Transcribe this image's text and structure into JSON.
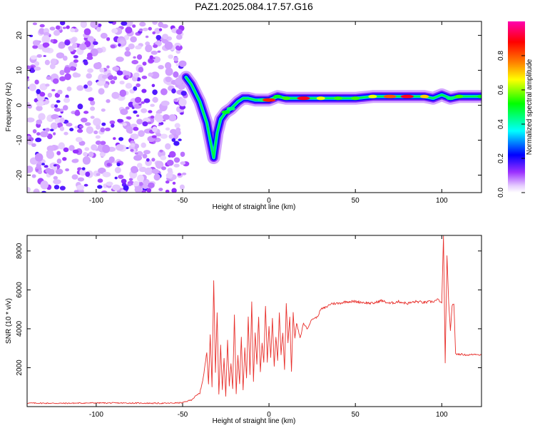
{
  "chart_data": [
    {
      "type": "heatmap",
      "title": "PAZ1.2025.084.17.57.G16",
      "xlabel": "Height of straight line (km)",
      "ylabel": "Frequency (Hz)",
      "xlim": [
        -140,
        123
      ],
      "ylim": [
        -25,
        24
      ],
      "xticks": [
        -100,
        -50,
        0,
        50,
        100
      ],
      "yticks": [
        -20,
        -10,
        0,
        10,
        20
      ],
      "colorbar": {
        "label": "Normalized spectral amplitude",
        "range": [
          0,
          1
        ],
        "ticks": [
          0.0,
          0.2,
          0.4,
          0.6,
          0.8
        ],
        "tick_labels": [
          "0.0",
          "0.2",
          "0.4",
          "0.6",
          "0.8"
        ],
        "colormap": [
          "#ffffff",
          "#d9b3f5",
          "#8a2be2",
          "#0000ff",
          "#00ffff",
          "#00ff00",
          "#ffff00",
          "#ff8000",
          "#ff0000",
          "#ff00b0"
        ]
      },
      "noise_region": {
        "x_from": -140,
        "x_to": -48,
        "freq_from": -25,
        "freq_to": 24,
        "amplitude": "0.0-0.3"
      },
      "signal_track": {
        "x": [
          -48,
          -45,
          -42,
          -40,
          -38,
          -36,
          -34,
          -32,
          -30,
          -28,
          -25,
          -22,
          -18,
          -15,
          -12,
          -8,
          -4,
          0,
          5,
          10,
          20,
          30,
          40,
          50,
          60,
          70,
          80,
          90,
          95,
          100,
          105,
          110,
          123
        ],
        "frequency": [
          8,
          6,
          3,
          1,
          -2,
          -5,
          -10,
          -15,
          -8,
          -4,
          -2,
          -1,
          1,
          2,
          2,
          1.5,
          1.5,
          1.5,
          2.5,
          2,
          2,
          2,
          2,
          2,
          2.5,
          2.5,
          2.5,
          2.5,
          2,
          3,
          2,
          2.5,
          2.5
        ],
        "amplitude": [
          0.2,
          0.25,
          0.3,
          0.3,
          0.3,
          0.25,
          0.3,
          0.25,
          0.3,
          0.3,
          0.5,
          0.45,
          0.35,
          0.35,
          0.4,
          0.4,
          0.45,
          0.85,
          0.5,
          0.55,
          0.9,
          0.65,
          0.55,
          0.55,
          0.65,
          0.8,
          0.9,
          0.7,
          0.35,
          0.4,
          0.45,
          0.55,
          0.5
        ]
      }
    },
    {
      "type": "line",
      "xlabel": "Height of straight line (km)",
      "ylabel": "SNR (10 * v/v)",
      "xlim": [
        -140,
        123
      ],
      "ylim": [
        0,
        8800
      ],
      "xticks": [
        -100,
        -50,
        0,
        50,
        100
      ],
      "yticks": [
        2000,
        4000,
        6000,
        8000
      ],
      "color": "#e8302c",
      "series": [
        {
          "x": [
            -140,
            -120,
            -100,
            -80,
            -60,
            -50,
            -45,
            -40,
            -38,
            -36,
            -35,
            -34,
            -33,
            -32,
            -31,
            -30,
            -29,
            -28,
            -27,
            -26,
            -25,
            -24,
            -23,
            -22,
            -21,
            -20,
            -19,
            -18,
            -17,
            -16,
            -15,
            -14,
            -13,
            -12,
            -11,
            -10,
            -9,
            -8,
            -7,
            -6,
            -5,
            -4,
            -3,
            -2,
            -1,
            0,
            1,
            2,
            3,
            4,
            5,
            6,
            7,
            8,
            9,
            10,
            11,
            12,
            13,
            14,
            15,
            16,
            18,
            20,
            22,
            25,
            28,
            30,
            33,
            36,
            40,
            45,
            50,
            55,
            60,
            65,
            70,
            75,
            80,
            85,
            90,
            95,
            98,
            100,
            101,
            102,
            103,
            104,
            105,
            106,
            107,
            108,
            110,
            115,
            120,
            123
          ],
          "y": [
            180,
            170,
            190,
            180,
            170,
            200,
            350,
            700,
            1500,
            2800,
            1200,
            3700,
            1000,
            6500,
            1800,
            4800,
            600,
            3200,
            900,
            2500,
            500,
            3400,
            1100,
            2200,
            900,
            4700,
            700,
            2600,
            1200,
            3600,
            900,
            3000,
            1500,
            4600,
            1600,
            5400,
            1300,
            3800,
            2200,
            4600,
            1800,
            3300,
            2300,
            5200,
            2300,
            4100,
            2500,
            4500,
            2100,
            3600,
            2400,
            4800,
            2700,
            3800,
            1900,
            5300,
            3300,
            4600,
            1800,
            4800,
            3500,
            4300,
            3500,
            4300,
            4000,
            4500,
            4600,
            5000,
            5100,
            5300,
            5300,
            5400,
            5400,
            5350,
            5300,
            5450,
            5300,
            5400,
            5300,
            5400,
            5350,
            5400,
            5500,
            5300,
            8800,
            2200,
            7800,
            5300,
            3900,
            5200,
            5300,
            2700,
            2700,
            2650,
            2700,
            2650
          ]
        }
      ]
    }
  ]
}
